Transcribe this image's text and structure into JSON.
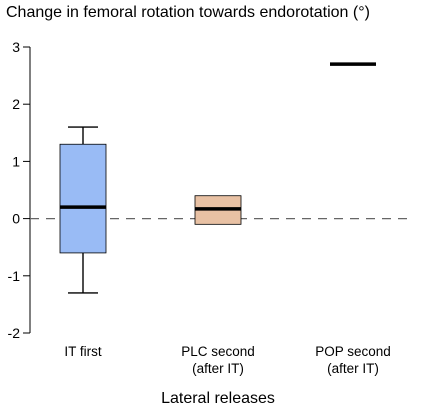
{
  "chart_data": {
    "type": "box",
    "title": "Change in femoral rotation towards endorotation (°)",
    "xlabel": "Lateral releases",
    "ylabel": "",
    "ylim": [
      -2,
      3
    ],
    "yticks": [
      -2,
      -1,
      0,
      1,
      2,
      3
    ],
    "reference_line": {
      "y": 0,
      "style": "dashed"
    },
    "categories": [
      {
        "lines": [
          "IT first"
        ]
      },
      {
        "lines": [
          "PLC second",
          "(after IT)"
        ]
      },
      {
        "lines": [
          "POP second",
          "(after IT)"
        ]
      }
    ],
    "boxes": [
      {
        "category": "IT first",
        "min": -1.3,
        "q1": -0.6,
        "median": 0.2,
        "q3": 1.3,
        "max": 1.6,
        "color": "#99bbf5"
      },
      {
        "category": "PLC second (after IT)",
        "min": -0.1,
        "q1": -0.1,
        "median": 0.17,
        "q3": 0.4,
        "max": 0.4,
        "color": "#e8c1a4"
      },
      {
        "category": "POP second (after IT)",
        "min": 2.7,
        "q1": 2.7,
        "median": 2.7,
        "q3": 2.7,
        "max": 2.7,
        "color": "#ffffff"
      }
    ]
  }
}
